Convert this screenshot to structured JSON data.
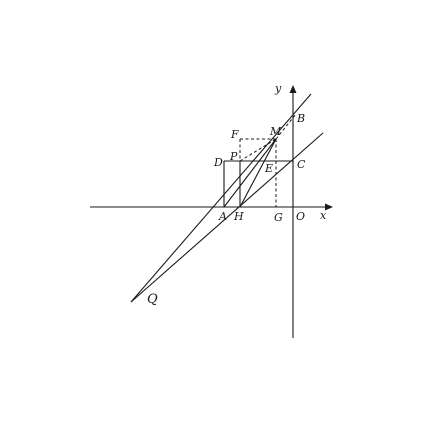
{
  "figure": {
    "axes": {
      "x_label": "x",
      "y_label": "y",
      "origin_label": "O"
    },
    "points": {
      "A": "A",
      "H": "H",
      "G": "G",
      "O": "O",
      "B": "B",
      "C": "C",
      "D": "D",
      "P": "P",
      "E": "E",
      "F": "F",
      "M": "M",
      "Q": "Q"
    },
    "colors": {
      "ink": "#1a1a1a",
      "background": "#ffffff"
    }
  }
}
